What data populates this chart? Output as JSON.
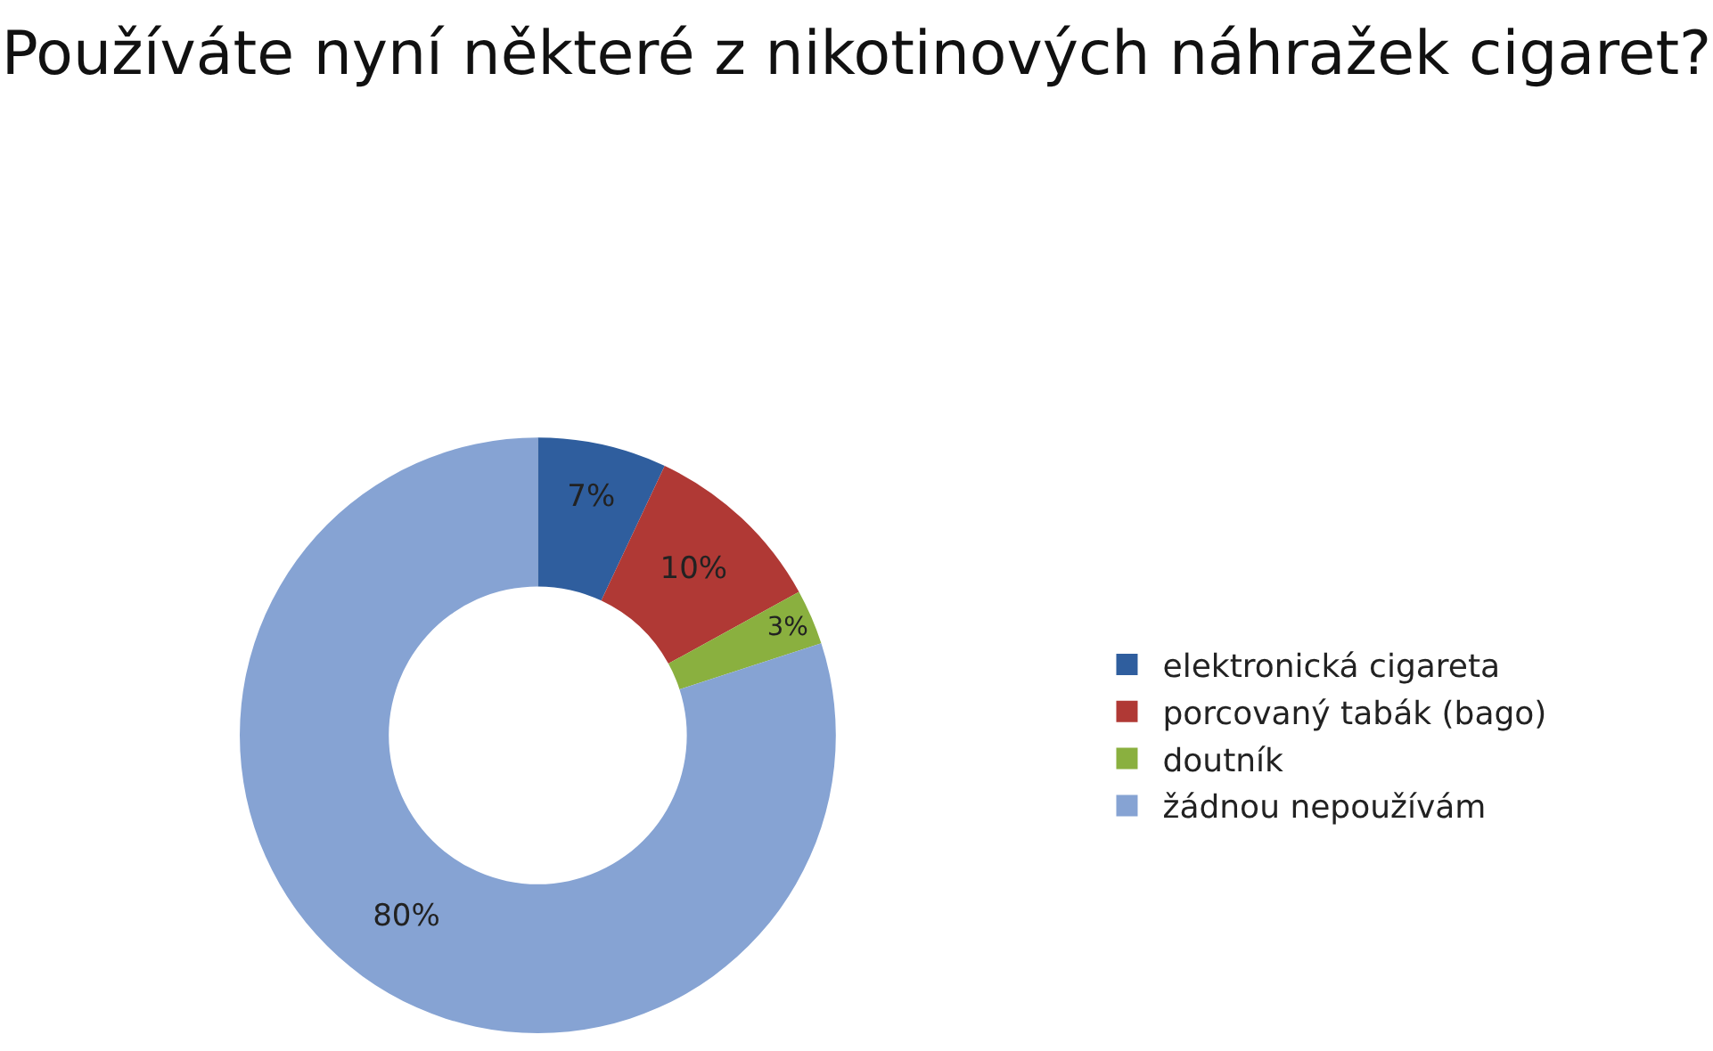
{
  "chart_data": {
    "type": "donut",
    "title": "Používáte nyní některé z nikotinových náhražek cigaret?",
    "categories": [
      "elektronická cigareta",
      "porcovaný tabák (bago)",
      "doutník",
      "žádnou nepoužívám"
    ],
    "values": [
      7,
      10,
      3,
      80
    ],
    "value_labels": [
      "7%",
      "10%",
      "3%",
      "80%"
    ],
    "colors": [
      "#2f5e9e",
      "#b03935",
      "#8ab03f",
      "#86a3d3"
    ],
    "legend": "right"
  }
}
